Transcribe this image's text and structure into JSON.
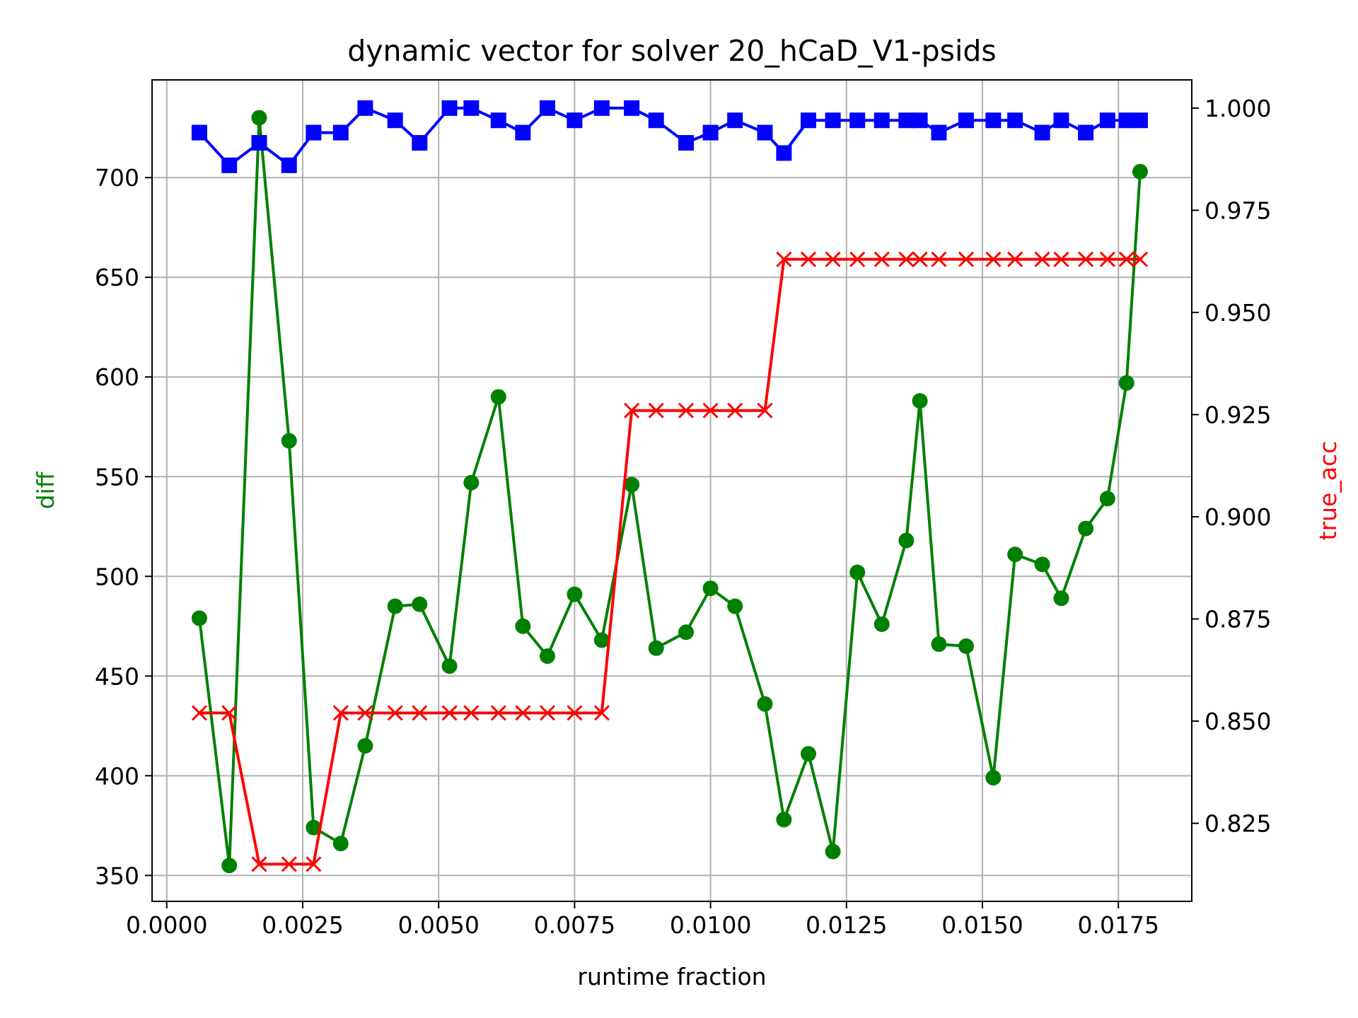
{
  "chart_data": {
    "type": "line",
    "title": "dynamic vector for solver 20_hCaD_V1-psids",
    "xlabel": "runtime fraction",
    "ylabel_left": "diff",
    "ylabel_right": "true_acc",
    "xlim": [
      -0.00027,
      0.01885
    ],
    "ylim_left": [
      337,
      749
    ],
    "ylim_right": [
      0.8059,
      1.0069
    ],
    "x_ticks": [
      0.0,
      0.0025,
      0.005,
      0.0075,
      0.01,
      0.0125,
      0.015,
      0.0175
    ],
    "x_tick_labels": [
      "0.0000",
      "0.0025",
      "0.0050",
      "0.0075",
      "0.0100",
      "0.0125",
      "0.0150",
      "0.0175"
    ],
    "y_left_ticks": [
      350,
      400,
      450,
      500,
      550,
      600,
      650,
      700
    ],
    "y_left_tick_labels": [
      "350",
      "400",
      "450",
      "500",
      "550",
      "600",
      "650",
      "700"
    ],
    "y_right_ticks": [
      0.825,
      0.85,
      0.875,
      0.9,
      0.925,
      0.95,
      0.975,
      1.0
    ],
    "y_right_tick_labels": [
      "0.825",
      "0.850",
      "0.875",
      "0.900",
      "0.925",
      "0.950",
      "0.975",
      "1.000"
    ],
    "grid": true,
    "colors": {
      "diff": "#008000",
      "true_acc": "#ff0000",
      "blue_series": "#0000ff",
      "axis": "#000000",
      "grid": "#b0b0b0"
    },
    "x": [
      0.0006,
      0.00115,
      0.0017,
      0.00225,
      0.0027,
      0.0032,
      0.00365,
      0.0042,
      0.00465,
      0.0052,
      0.0056,
      0.0061,
      0.00655,
      0.007,
      0.0075,
      0.008,
      0.00855,
      0.009,
      0.00955,
      0.01,
      0.01045,
      0.011,
      0.01135,
      0.0118,
      0.01225,
      0.0127,
      0.01315,
      0.0136,
      0.01385,
      0.0142,
      0.0147,
      0.0152,
      0.0156,
      0.0161,
      0.01645,
      0.0169,
      0.0173,
      0.01765,
      0.0179
    ],
    "series": [
      {
        "key": "diff",
        "axis": "left",
        "marker": "circle",
        "values": [
          479,
          355,
          730,
          568,
          374,
          366,
          415,
          485,
          486,
          455,
          547,
          590,
          475,
          460,
          491,
          468,
          546,
          464,
          472,
          494,
          485,
          436,
          378,
          411,
          362,
          502,
          476,
          518,
          588,
          466,
          465,
          399,
          511,
          506,
          489,
          524,
          539,
          597,
          703
        ]
      },
      {
        "key": "true_acc",
        "axis": "right",
        "marker": "x",
        "values": [
          0.852,
          0.852,
          0.815,
          0.815,
          0.815,
          0.852,
          0.852,
          0.852,
          0.852,
          0.852,
          0.852,
          0.852,
          0.852,
          0.852,
          0.852,
          0.852,
          0.926,
          0.926,
          0.926,
          0.926,
          0.926,
          0.926,
          0.963,
          0.963,
          0.963,
          0.963,
          0.963,
          0.963,
          0.963,
          0.963,
          0.963,
          0.963,
          0.963,
          0.963,
          0.963,
          0.963,
          0.963,
          0.963,
          0.963
        ]
      },
      {
        "key": "blue_series",
        "axis": "right",
        "marker": "square",
        "values": [
          0.994,
          0.986,
          0.9915,
          0.986,
          0.994,
          0.994,
          1.0,
          0.997,
          0.9915,
          1.0,
          1.0,
          0.997,
          0.994,
          1.0,
          0.997,
          1.0,
          1.0,
          0.997,
          0.9915,
          0.994,
          0.997,
          0.994,
          0.989,
          0.997,
          0.997,
          0.997,
          0.997,
          0.997,
          0.997,
          0.994,
          0.997,
          0.997,
          0.997,
          0.994,
          0.997,
          0.994,
          0.997,
          0.997,
          0.997
        ]
      }
    ]
  }
}
